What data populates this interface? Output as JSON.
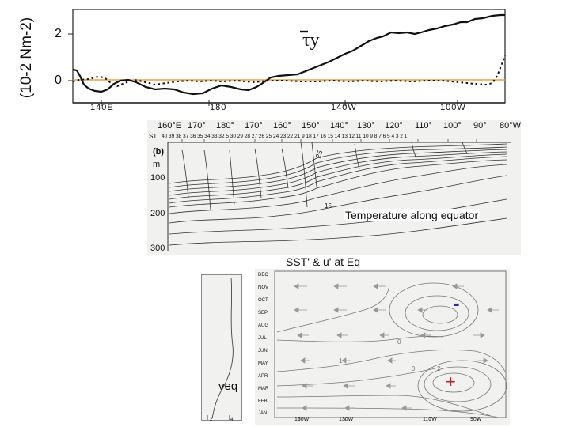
{
  "panel_a": {
    "y_axis_label": "(10-2 Nm-2)",
    "y_ticks": [
      "2",
      "0"
    ],
    "x_ticks": [
      "140E",
      "180",
      "140W",
      "100W"
    ],
    "tau_label": "τy",
    "zero_line_color": "#e8a33a"
  },
  "panel_b": {
    "panel_label": "(b)",
    "depth_unit": "m",
    "depth_ticks": [
      "100",
      "200",
      "300"
    ],
    "longitude_ticks": [
      "160°E",
      "170°",
      "180°",
      "170°",
      "160°",
      "150°",
      "140°",
      "130°",
      "120°",
      "110°",
      "100°",
      "90°",
      "80°W"
    ],
    "station_prefix": "ST",
    "station_numbers": "40 39 38  37 36 35 34 33 32 5 30 29 28 27 26 25 24 23 22 21 9 18 17 16 15 14 13 12 11 10 9 8 7 6 5 4 3 2 1",
    "contour_labels": [
      "25",
      "15"
    ],
    "title": "Temperature along equator"
  },
  "panel_c": {
    "title": "SST' & u' at Eq",
    "months": [
      "DEC",
      "NOV",
      "OCT",
      "SEP",
      "AUG",
      "JUL",
      "JUN",
      "MAY",
      "APR",
      "MAR",
      "FEB",
      "JAN"
    ],
    "x_ticks": [
      "150W",
      "130W",
      "110W",
      "90W"
    ],
    "contour_labels": [
      "0",
      "1",
      "0",
      "2"
    ],
    "minus_sign": "-",
    "plus_sign": "+",
    "minus_color": "#2a2a9c",
    "plus_color": "#c0202a",
    "side_label": "veq",
    "side_ticks": [
      "2",
      "4"
    ]
  }
}
